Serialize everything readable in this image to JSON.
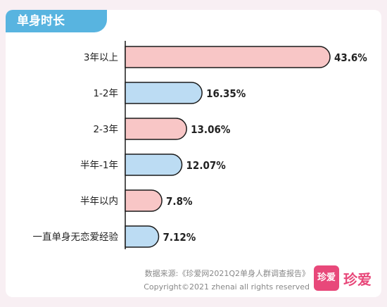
{
  "header": {
    "title": "单身时长"
  },
  "chart_data": {
    "type": "bar",
    "orientation": "horizontal",
    "title": "单身时长",
    "categories": [
      "3年以上",
      "1-2年",
      "2-3年",
      "半年-1年",
      "半年以内",
      "一直单身无恋爱经验"
    ],
    "values": [
      43.6,
      16.35,
      13.06,
      12.07,
      7.8,
      7.12
    ],
    "value_labels": [
      "43.6%",
      "16.35%",
      "13.06%",
      "12.07%",
      "7.8%",
      "7.12%"
    ],
    "colors": [
      "#f8c6c6",
      "#bcdcf3",
      "#f8c6c6",
      "#bcdcf3",
      "#f8c6c6",
      "#bcdcf3"
    ],
    "outline_color": "#1a1a1a",
    "xlim": [
      0,
      43.6
    ],
    "grid": false
  },
  "footer": {
    "source": "数据来源:《珍爱网2021Q2单身人群调查报告》",
    "copyright": "Copyright©2021  zhenai  all rights reserved"
  },
  "logo": {
    "mark": "珍爱",
    "name": "珍爱",
    "color": "#e8487a"
  }
}
